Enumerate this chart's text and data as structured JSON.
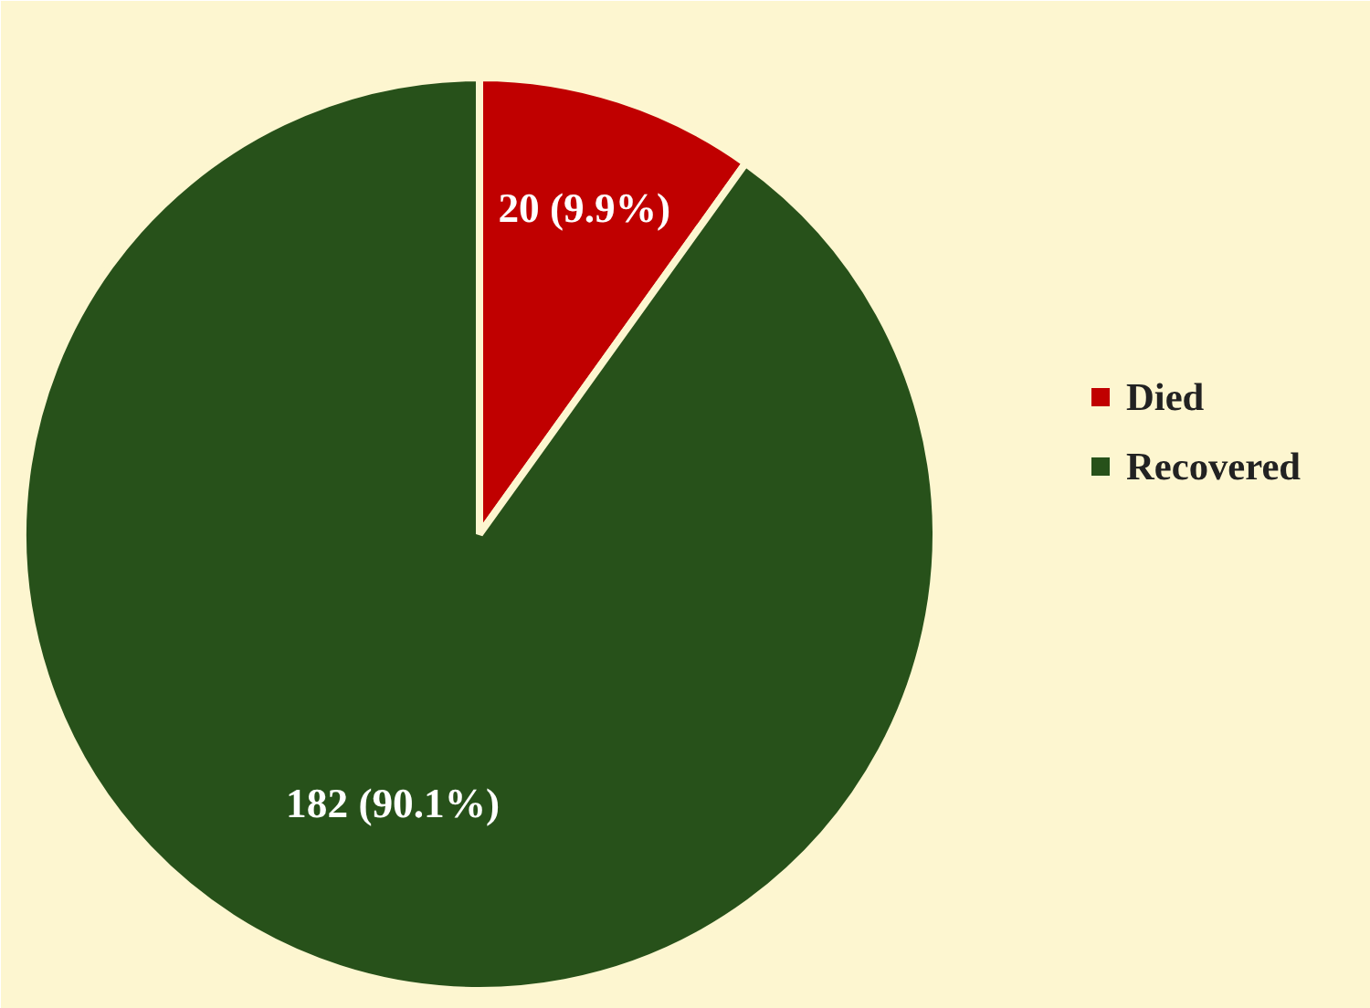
{
  "chart_data": {
    "type": "pie",
    "categories": [
      "Died",
      "Recovered"
    ],
    "values": [
      20,
      182
    ],
    "colors": [
      "#c00000",
      "#27511a"
    ],
    "value_labels": [
      "20 (9.9%)",
      "182 (90.1%)"
    ],
    "legend": "right"
  }
}
